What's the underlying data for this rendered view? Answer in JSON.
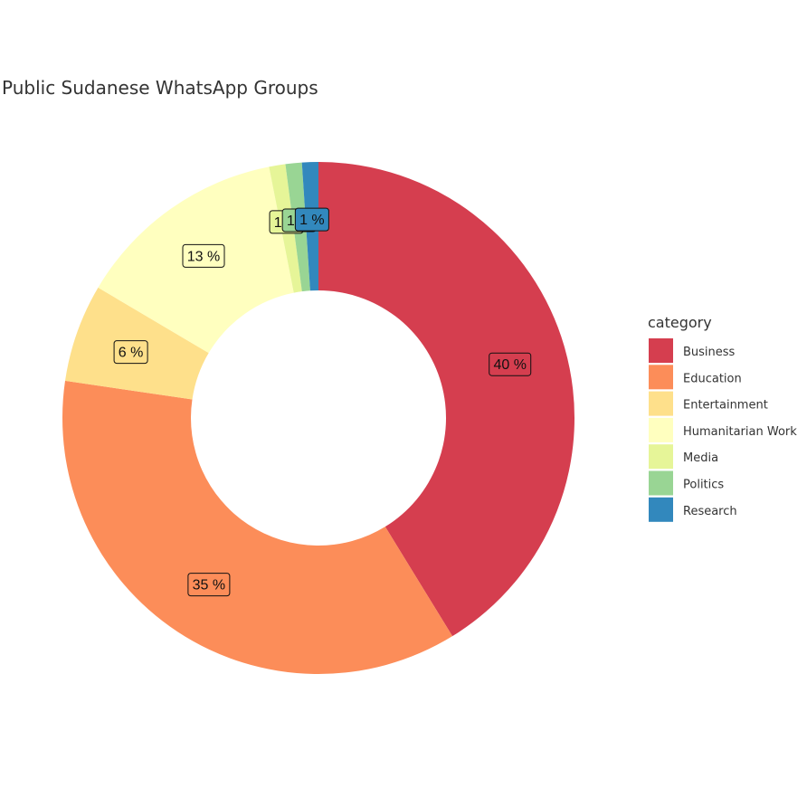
{
  "chart_data": {
    "type": "pie",
    "title": "Public Sudanese WhatsApp Groups",
    "legend_title": "category",
    "legend_position": "right",
    "donut": true,
    "slices": [
      {
        "category": "Business",
        "percent": 40,
        "label": "40 %",
        "color": "#d53e4f"
      },
      {
        "category": "Education",
        "percent": 35,
        "label": "35 %",
        "color": "#fc8d59"
      },
      {
        "category": "Entertainment",
        "percent": 6,
        "label": "6 %",
        "color": "#fee08b"
      },
      {
        "category": "Humanitarian Work",
        "percent": 13,
        "label": "13 %",
        "color": "#ffffbf"
      },
      {
        "category": "Media",
        "percent": 1,
        "label": "1 %",
        "color": "#e6f598"
      },
      {
        "category": "Politics",
        "percent": 1,
        "label": "1 %",
        "color": "#99d594"
      },
      {
        "category": "Research",
        "percent": 1,
        "label": "1 %",
        "color": "#3288bd"
      }
    ]
  }
}
